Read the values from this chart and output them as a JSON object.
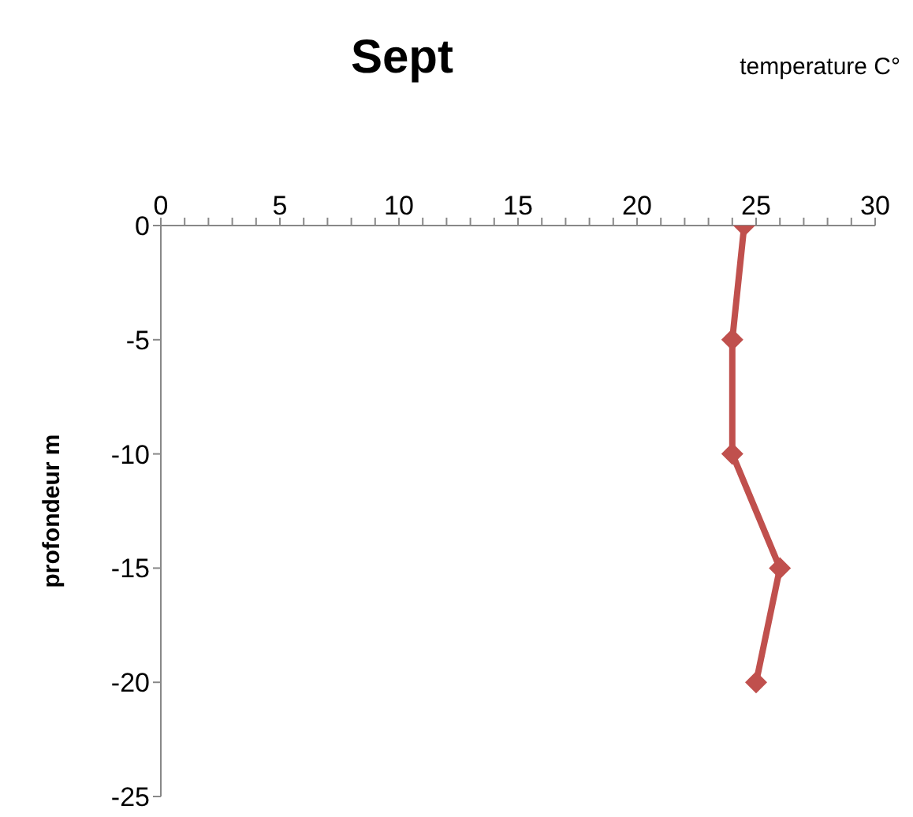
{
  "chart_data": {
    "type": "line",
    "title": "Sept",
    "xlabel": "temperature C°",
    "ylabel": "profondeur m",
    "x": [
      24.5,
      24,
      24,
      26,
      25
    ],
    "series": [
      {
        "color": "#c0504d",
        "values": [
          0,
          -5,
          -10,
          -15,
          -20
        ]
      }
    ],
    "xlim": [
      0,
      30
    ],
    "xticks": [
      0,
      {
        "value": 1,
        "label": null
      },
      {
        "value": 2,
        "label": null
      },
      {
        "value": 3,
        "label": null
      },
      {
        "value": 4,
        "label": null
      },
      5,
      {
        "value": 6,
        "label": null
      },
      {
        "value": 7,
        "label": null
      },
      {
        "value": 8,
        "label": null
      },
      {
        "value": 9,
        "label": null
      },
      10,
      {
        "value": 11,
        "label": null
      },
      {
        "value": 12,
        "label": null
      },
      {
        "value": 13,
        "label": null
      },
      {
        "value": 14,
        "label": null
      },
      15,
      {
        "value": 16,
        "label": null
      },
      {
        "value": 17,
        "label": null
      },
      {
        "value": 18,
        "label": null
      },
      {
        "value": 19,
        "label": null
      },
      20,
      {
        "value": 21,
        "label": null
      },
      {
        "value": 22,
        "label": null
      },
      {
        "value": 23,
        "label": null
      },
      {
        "value": 24,
        "label": null
      },
      25,
      {
        "value": 26,
        "label": null
      },
      {
        "value": 27,
        "label": null
      },
      {
        "value": 28,
        "label": null
      },
      {
        "value": 29,
        "label": null
      },
      30
    ],
    "ylim": [
      -25,
      0
    ],
    "yticks": [
      -25,
      -20,
      -15,
      -10,
      -5,
      0
    ],
    "grid": false,
    "marker": "diamond",
    "line_style": "solid"
  }
}
